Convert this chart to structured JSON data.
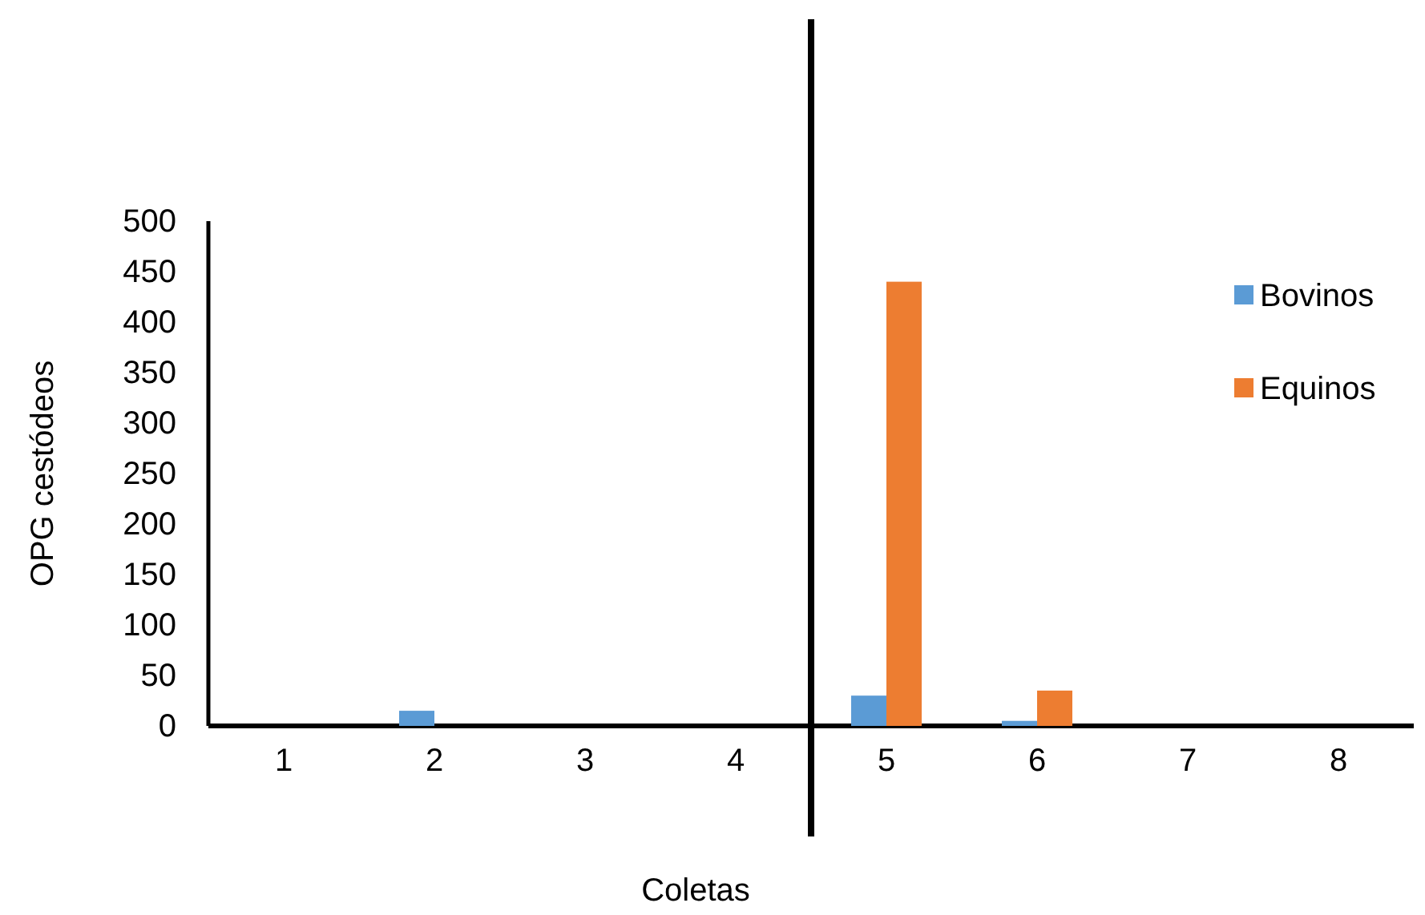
{
  "chart_data": {
    "type": "bar",
    "xlabel": "Coletas",
    "ylabel": "OPG cestódeos",
    "x": [
      1,
      2,
      3,
      4,
      5,
      6,
      7,
      8
    ],
    "xlim": [
      0.5,
      8.5
    ],
    "xticks": [
      1,
      2,
      3,
      4,
      5,
      6,
      7,
      8
    ],
    "ylim": [
      0,
      500
    ],
    "yticks": [
      0,
      50,
      100,
      150,
      200,
      250,
      300,
      350,
      400,
      450,
      500
    ],
    "series": [
      {
        "name": "Bovinos",
        "color": "#5b9bd5",
        "values": [
          0,
          15,
          0,
          0,
          30,
          5,
          0,
          0
        ]
      },
      {
        "name": "Equinos",
        "color": "#ed7d31",
        "values": [
          0,
          0,
          0,
          0,
          440,
          35,
          0,
          0
        ]
      }
    ],
    "ref_lines": [
      {
        "axis": "x",
        "value": 4.5,
        "color": "#000000",
        "line_style": "solid"
      }
    ],
    "grid": false,
    "legend": "right"
  }
}
